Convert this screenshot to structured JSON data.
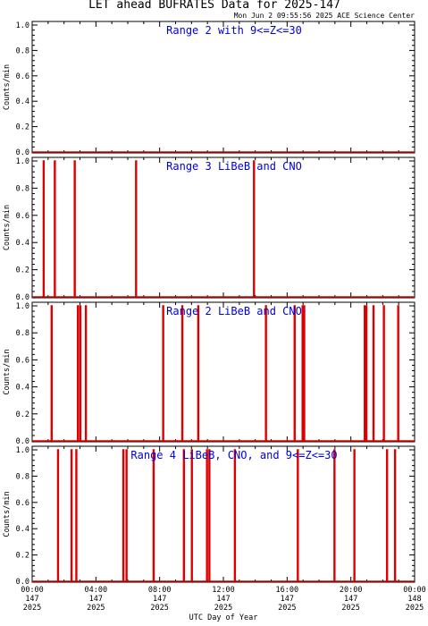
{
  "title": "LET ahead BUFRATES Data for 2025-147",
  "subtitle": "Mon Jun  2 09:55:56 2025 ACE Science Center",
  "xlabel": "UTC Day of Year",
  "colors": {
    "trace": "#dd0000",
    "panel_title": "#0000dd",
    "axis": "#000000"
  },
  "chart_data": [
    {
      "type": "line",
      "title": "Range 2 with 9<=Z<=30",
      "ylabel": "Counts/min",
      "xlim": [
        0,
        24
      ],
      "ylim": [
        0,
        1
      ],
      "yticks": [
        "0.0",
        "0.2",
        "0.4",
        "0.6",
        "0.8",
        "1.0"
      ],
      "spikes_hours": []
    },
    {
      "type": "line",
      "title": "Range 3 LiBeB and CNO",
      "ylabel": "Counts/min",
      "xlim": [
        0,
        24
      ],
      "ylim": [
        0,
        1
      ],
      "yticks": [
        "0.0",
        "0.2",
        "0.4",
        "0.6",
        "0.8",
        "1.0"
      ],
      "spikes_hours": [
        0.7,
        1.4,
        2.65,
        6.5,
        13.9
      ]
    },
    {
      "type": "line",
      "title": "Range 2 LiBeB and CNO",
      "ylabel": "Counts/min",
      "xlim": [
        0,
        24
      ],
      "ylim": [
        0,
        1
      ],
      "yticks": [
        "0.0",
        "0.2",
        "0.4",
        "0.6",
        "0.8",
        "1.0"
      ],
      "spikes_hours": [
        1.2,
        2.85,
        3.0,
        3.35,
        8.2,
        9.4,
        10.4,
        14.65,
        16.45,
        16.95,
        17.05,
        20.85,
        20.95,
        21.4,
        22.05,
        22.95
      ]
    },
    {
      "type": "line",
      "title": "Range 4 LiBeB, CNO, and 9<=Z<=30",
      "ylabel": "Counts/min",
      "xlim": [
        0,
        24
      ],
      "ylim": [
        0,
        1
      ],
      "yticks": [
        "0.0",
        "0.2",
        "0.4",
        "0.6",
        "0.8",
        "1.0"
      ],
      "spikes_hours": [
        1.6,
        2.45,
        2.75,
        5.7,
        5.9,
        7.6,
        9.5,
        10.0,
        10.95,
        11.1,
        12.7,
        16.65,
        18.95,
        20.2,
        22.25,
        22.75
      ]
    }
  ],
  "xticks": [
    {
      "hour": 0,
      "l1": "00:00",
      "l2": "147",
      "l3": "2025"
    },
    {
      "hour": 4,
      "l1": "04:00",
      "l2": "147",
      "l3": "2025"
    },
    {
      "hour": 8,
      "l1": "08:00",
      "l2": "147",
      "l3": "2025"
    },
    {
      "hour": 12,
      "l1": "12:00",
      "l2": "147",
      "l3": "2025"
    },
    {
      "hour": 16,
      "l1": "16:00",
      "l2": "147",
      "l3": "2025"
    },
    {
      "hour": 20,
      "l1": "20:00",
      "l2": "147",
      "l3": "2025"
    },
    {
      "hour": 24,
      "l1": "00:00",
      "l2": "148",
      "l3": "2025"
    }
  ]
}
